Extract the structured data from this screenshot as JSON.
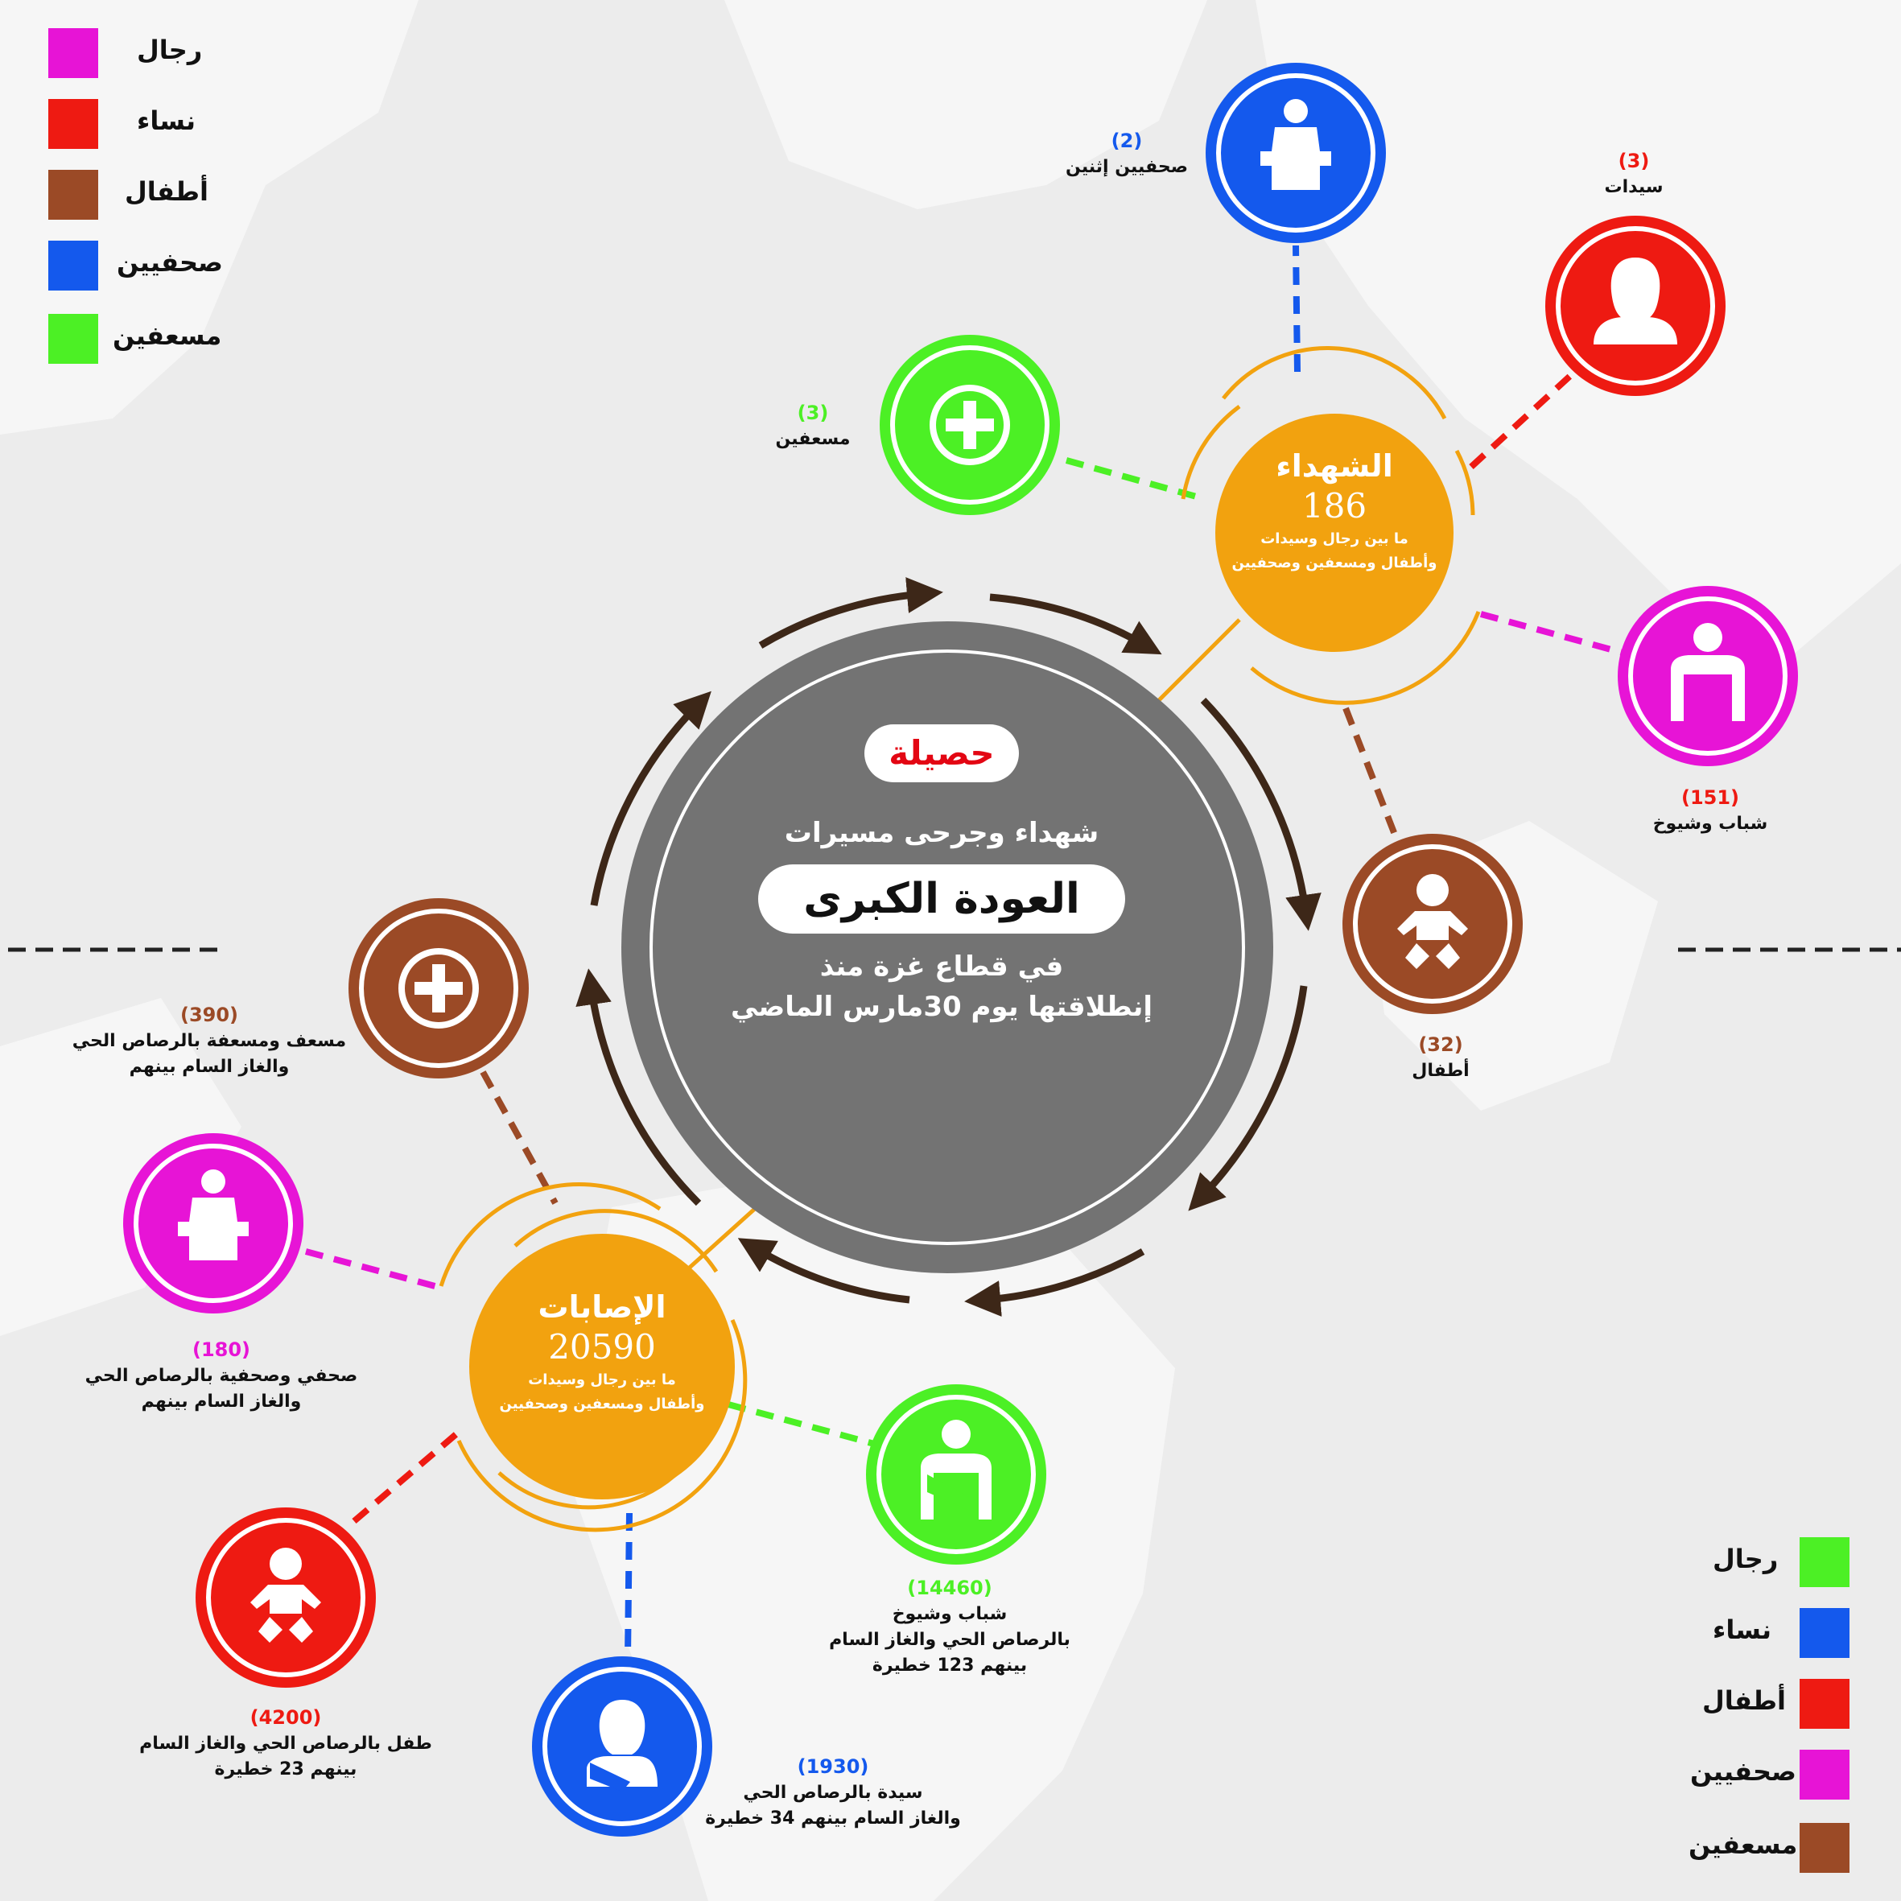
{
  "colors": {
    "magenta": "#e714d6",
    "red": "#ee1a12",
    "brown": "#9b4a26",
    "blue": "#1459ed",
    "green": "#4cf025",
    "orange": "#f2a20f",
    "grey": "#737373",
    "arrow": "#3d2718",
    "title_red": "#e30613"
  },
  "legend_top": [
    {
      "label": "رجال",
      "color": "#e714d6"
    },
    {
      "label": "نساء",
      "color": "#ee1a12"
    },
    {
      "label": "أطفال",
      "color": "#9b4a26"
    },
    {
      "label": "صحفيين",
      "color": "#1459ed"
    },
    {
      "label": "مسعفين",
      "color": "#4cf025"
    }
  ],
  "legend_bottom": [
    {
      "label": "رجال",
      "color": "#4cf025"
    },
    {
      "label": "نساء",
      "color": "#1459ed"
    },
    {
      "label": "أطفال",
      "color": "#ee1a12"
    },
    {
      "label": "صحفيين",
      "color": "#e714d6"
    },
    {
      "label": "مسعفين",
      "color": "#9b4a26"
    }
  ],
  "center": {
    "pill": "حصيلة",
    "line1": "شهداء وجرحى مسيرات",
    "main": "العودة الكبرى",
    "line3": "في قطاع غزة منذ",
    "line4": "إنطلاقتها يوم 30مارس الماضي"
  },
  "martyrs": {
    "title": "الشهداء",
    "total": "186",
    "sub1": "ما بين رجال وسيدات",
    "sub2": "وأطفال ومسعفين وصحفيين",
    "journalists": {
      "count": "(2)",
      "label": "صحفيين إثنين",
      "icon": "speaker-podium-icon"
    },
    "women": {
      "count": "(3)",
      "label": "سيدات",
      "icon": "woman-icon"
    },
    "medics": {
      "count": "(3)",
      "label": "مسعفين",
      "icon": "medical-cross-icon"
    },
    "men": {
      "count": "(151)",
      "label": "شباب وشيوخ",
      "icon": "man-icon"
    },
    "children": {
      "count": "(32)",
      "label": "أطفال",
      "icon": "baby-icon"
    }
  },
  "injuries": {
    "title": "الإصابات",
    "total": "20590",
    "sub1": "ما بين رجال وسيدات",
    "sub2": "وأطفال ومسعفين وصحفيين",
    "medics": {
      "count": "(390)",
      "line1": "مسعف ومسعفة بالرصاص الحي",
      "line2": "والغاز السام بينهم",
      "icon": "medical-cross-icon"
    },
    "journalists": {
      "count": "(180)",
      "line1": "صحفي وصحفية بالرصاص الحي",
      "line2": "والغاز السام بينهم",
      "icon": "speaker-podium-icon"
    },
    "children": {
      "count": "(4200)",
      "line1": "طفل بالرصاص الحي والغاز السام",
      "line2": "بينهم 23 خطيرة",
      "icon": "baby-icon"
    },
    "women": {
      "count": "(1930)",
      "line1": "سيدة بالرصاص الحي",
      "line2": "والغاز السام بينهم 34 خطيرة",
      "icon": "injured-woman-icon"
    },
    "men": {
      "count": "(14460)",
      "line1": "شباب وشيوخ",
      "line2": "بالرصاص الحي والغاز السام",
      "line3": "بينهم 123 خطيرة",
      "icon": "injured-man-icon"
    }
  }
}
